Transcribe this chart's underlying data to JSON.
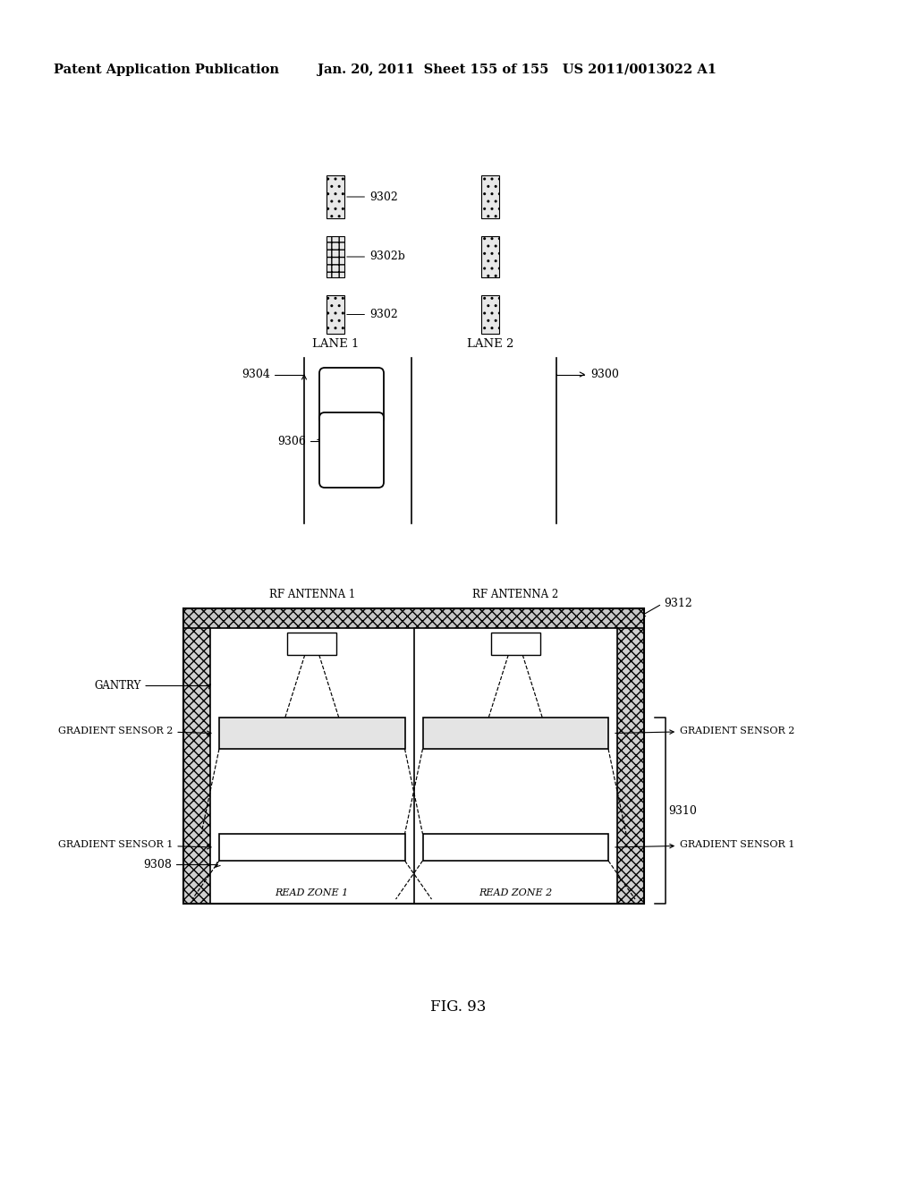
{
  "title": "FIG. 93",
  "header_left": "Patent Application Publication",
  "header_right": "Jan. 20, 2011  Sheet 155 of 155   US 2011/0013022 A1",
  "bg_color": "#ffffff",
  "text_color": "#000000"
}
